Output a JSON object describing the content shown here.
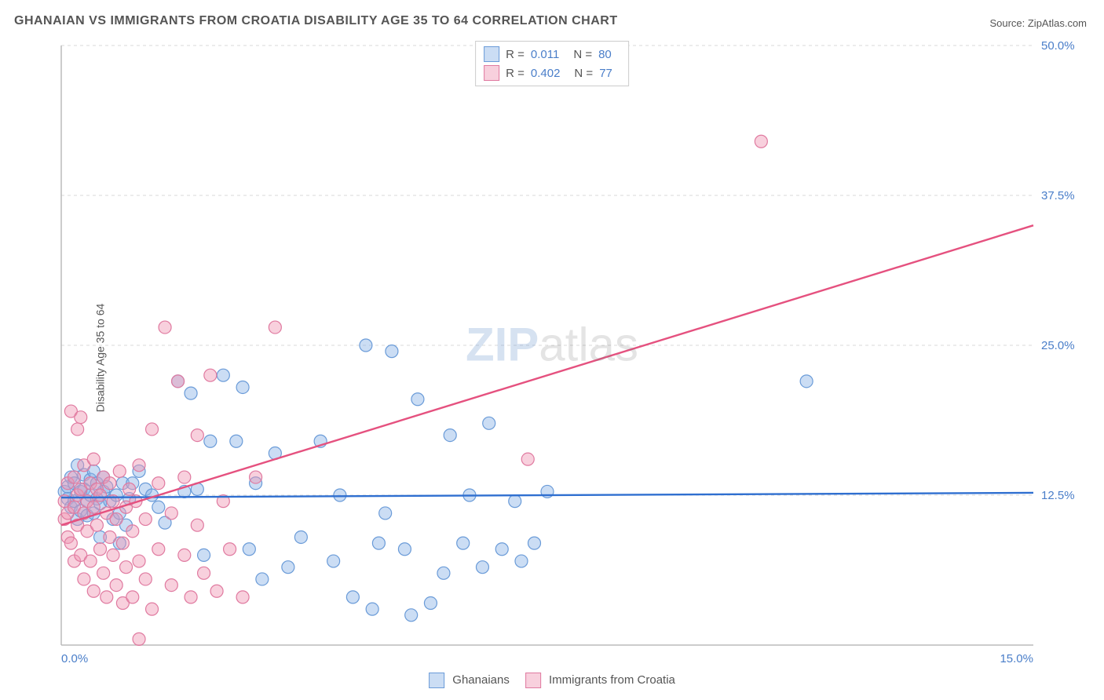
{
  "title_text": "GHANAIAN VS IMMIGRANTS FROM CROATIA DISABILITY AGE 35 TO 64 CORRELATION CHART",
  "source_text": "Source: ZipAtlas.com",
  "ylabel_text": "Disability Age 35 to 64",
  "watermark": {
    "zip": "ZIP",
    "atlas": "atlas"
  },
  "chart": {
    "type": "scatter",
    "xlim": [
      0,
      15
    ],
    "ylim": [
      0,
      50
    ],
    "x_ticks": [
      {
        "v": 0,
        "label": "0.0%"
      },
      {
        "v": 15,
        "label": "15.0%"
      }
    ],
    "y_ticks": [
      {
        "v": 12.5,
        "label": "12.5%"
      },
      {
        "v": 25,
        "label": "25.0%"
      },
      {
        "v": 37.5,
        "label": "37.5%"
      },
      {
        "v": 50,
        "label": "50.0%"
      }
    ],
    "grid_color": "#d9d9d9",
    "axis_color": "#bbbbbb",
    "tick_label_color": "#4a7ec9",
    "tick_label_fontsize": 15,
    "background_color": "#ffffff",
    "marker_radius": 8,
    "marker_stroke_width": 1.2,
    "series": [
      {
        "name": "Ghanaians",
        "fill_color": "rgba(140,180,230,0.45)",
        "stroke_color": "#6a9bd8",
        "line_color": "#2f6fd0",
        "line_width": 2.4,
        "R_label": "R =",
        "R_value": "0.011",
        "N_label": "N =",
        "N_value": "80",
        "trend": {
          "x1": 0,
          "y1": 12.3,
          "x2": 15,
          "y2": 12.7
        },
        "points": [
          [
            0.05,
            12.8
          ],
          [
            0.1,
            13.2
          ],
          [
            0.1,
            12.2
          ],
          [
            0.15,
            11.5
          ],
          [
            0.15,
            14.0
          ],
          [
            0.2,
            13.5
          ],
          [
            0.2,
            12.0
          ],
          [
            0.25,
            10.5
          ],
          [
            0.25,
            15.0
          ],
          [
            0.3,
            12.8
          ],
          [
            0.3,
            11.2
          ],
          [
            0.35,
            14.2
          ],
          [
            0.35,
            13.0
          ],
          [
            0.4,
            12.0
          ],
          [
            0.4,
            10.8
          ],
          [
            0.45,
            13.8
          ],
          [
            0.45,
            12.5
          ],
          [
            0.5,
            11.0
          ],
          [
            0.5,
            14.5
          ],
          [
            0.55,
            12.2
          ],
          [
            0.55,
            13.5
          ],
          [
            0.6,
            11.8
          ],
          [
            0.65,
            12.8
          ],
          [
            0.65,
            14.0
          ],
          [
            0.7,
            13.2
          ],
          [
            0.75,
            12.0
          ],
          [
            0.8,
            10.5
          ],
          [
            0.85,
            12.5
          ],
          [
            0.9,
            11.0
          ],
          [
            0.95,
            13.5
          ],
          [
            1.0,
            10.0
          ],
          [
            1.05,
            12.2
          ],
          [
            1.1,
            13.5
          ],
          [
            1.2,
            14.5
          ],
          [
            1.3,
            13.0
          ],
          [
            1.4,
            12.5
          ],
          [
            1.5,
            11.5
          ],
          [
            1.6,
            10.2
          ],
          [
            1.8,
            22.0
          ],
          [
            1.9,
            12.8
          ],
          [
            2.0,
            21.0
          ],
          [
            2.1,
            13.0
          ],
          [
            2.2,
            7.5
          ],
          [
            2.3,
            17.0
          ],
          [
            2.5,
            22.5
          ],
          [
            2.7,
            17.0
          ],
          [
            2.8,
            21.5
          ],
          [
            2.9,
            8.0
          ],
          [
            3.0,
            13.5
          ],
          [
            3.1,
            5.5
          ],
          [
            3.3,
            16.0
          ],
          [
            3.5,
            6.5
          ],
          [
            3.7,
            9.0
          ],
          [
            4.0,
            17.0
          ],
          [
            4.2,
            7.0
          ],
          [
            4.3,
            12.5
          ],
          [
            4.5,
            4.0
          ],
          [
            4.7,
            25.0
          ],
          [
            4.8,
            3.0
          ],
          [
            4.9,
            8.5
          ],
          [
            5.0,
            11.0
          ],
          [
            5.1,
            24.5
          ],
          [
            5.3,
            8.0
          ],
          [
            5.4,
            2.5
          ],
          [
            5.5,
            20.5
          ],
          [
            5.7,
            3.5
          ],
          [
            5.9,
            6.0
          ],
          [
            6.0,
            17.5
          ],
          [
            6.2,
            8.5
          ],
          [
            6.3,
            12.5
          ],
          [
            6.5,
            6.5
          ],
          [
            6.6,
            18.5
          ],
          [
            6.8,
            8.0
          ],
          [
            7.0,
            12.0
          ],
          [
            7.1,
            7.0
          ],
          [
            7.3,
            8.5
          ],
          [
            7.5,
            12.8
          ],
          [
            11.5,
            22.0
          ],
          [
            0.6,
            9.0
          ],
          [
            0.9,
            8.5
          ]
        ]
      },
      {
        "name": "Immigrants from Croatia",
        "fill_color": "rgba(240,150,180,0.45)",
        "stroke_color": "#e07aa0",
        "line_color": "#e5517f",
        "line_width": 2.4,
        "R_label": "R =",
        "R_value": "0.402",
        "N_label": "N =",
        "N_value": "77",
        "trend": {
          "x1": 0,
          "y1": 10.0,
          "x2": 15,
          "y2": 35.0
        },
        "points": [
          [
            0.05,
            10.5
          ],
          [
            0.05,
            12.0
          ],
          [
            0.1,
            11.0
          ],
          [
            0.1,
            13.5
          ],
          [
            0.1,
            9.0
          ],
          [
            0.15,
            19.5
          ],
          [
            0.15,
            8.5
          ],
          [
            0.2,
            11.5
          ],
          [
            0.2,
            14.0
          ],
          [
            0.2,
            7.0
          ],
          [
            0.25,
            18.0
          ],
          [
            0.25,
            10.0
          ],
          [
            0.25,
            12.5
          ],
          [
            0.3,
            19.0
          ],
          [
            0.3,
            13.0
          ],
          [
            0.3,
            7.5
          ],
          [
            0.35,
            11.0
          ],
          [
            0.35,
            15.0
          ],
          [
            0.35,
            5.5
          ],
          [
            0.4,
            12.0
          ],
          [
            0.4,
            9.5
          ],
          [
            0.45,
            13.5
          ],
          [
            0.45,
            7.0
          ],
          [
            0.5,
            11.5
          ],
          [
            0.5,
            15.5
          ],
          [
            0.5,
            4.5
          ],
          [
            0.55,
            10.0
          ],
          [
            0.55,
            13.0
          ],
          [
            0.6,
            8.0
          ],
          [
            0.6,
            12.5
          ],
          [
            0.65,
            6.0
          ],
          [
            0.65,
            14.0
          ],
          [
            0.7,
            11.0
          ],
          [
            0.7,
            4.0
          ],
          [
            0.75,
            9.0
          ],
          [
            0.75,
            13.5
          ],
          [
            0.8,
            7.5
          ],
          [
            0.8,
            12.0
          ],
          [
            0.85,
            5.0
          ],
          [
            0.85,
            10.5
          ],
          [
            0.9,
            14.5
          ],
          [
            0.95,
            8.5
          ],
          [
            0.95,
            3.5
          ],
          [
            1.0,
            11.5
          ],
          [
            1.0,
            6.5
          ],
          [
            1.05,
            13.0
          ],
          [
            1.1,
            4.0
          ],
          [
            1.1,
            9.5
          ],
          [
            1.15,
            12.0
          ],
          [
            1.2,
            7.0
          ],
          [
            1.2,
            15.0
          ],
          [
            1.3,
            5.5
          ],
          [
            1.3,
            10.5
          ],
          [
            1.4,
            18.0
          ],
          [
            1.4,
            3.0
          ],
          [
            1.5,
            8.0
          ],
          [
            1.5,
            13.5
          ],
          [
            1.6,
            26.5
          ],
          [
            1.7,
            5.0
          ],
          [
            1.7,
            11.0
          ],
          [
            1.8,
            22.0
          ],
          [
            1.9,
            7.5
          ],
          [
            1.9,
            14.0
          ],
          [
            2.0,
            4.0
          ],
          [
            2.1,
            10.0
          ],
          [
            2.1,
            17.5
          ],
          [
            2.2,
            6.0
          ],
          [
            2.3,
            22.5
          ],
          [
            2.4,
            4.5
          ],
          [
            2.5,
            12.0
          ],
          [
            2.6,
            8.0
          ],
          [
            2.8,
            4.0
          ],
          [
            3.0,
            14.0
          ],
          [
            3.3,
            26.5
          ],
          [
            1.2,
            0.5
          ],
          [
            7.2,
            15.5
          ],
          [
            10.8,
            42.0
          ]
        ]
      }
    ]
  },
  "series_legend": {
    "series1_label": "Ghanaians",
    "series2_label": "Immigrants from Croatia"
  }
}
